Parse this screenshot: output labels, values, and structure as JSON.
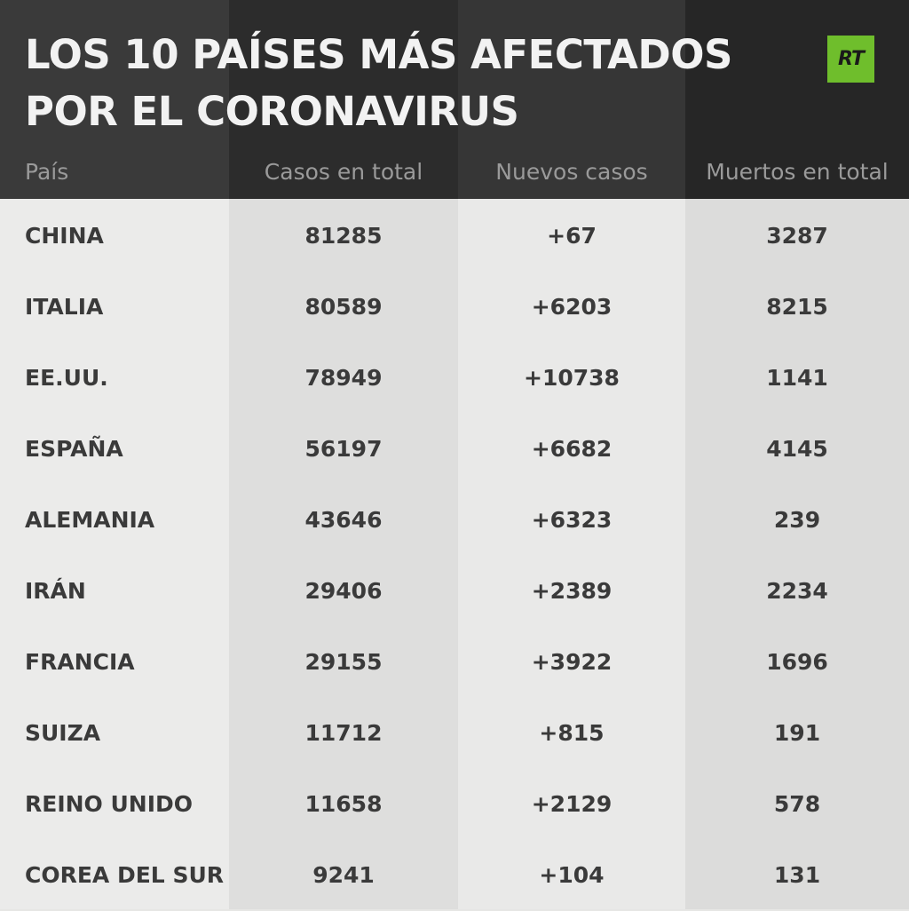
{
  "title_lines": [
    "LOS 10 PAÍSES MÁS AFECTADOS",
    "POR EL CORONAVIRUS"
  ],
  "logo_text": "RT",
  "colors": {
    "header_bg": "#2c2c2c",
    "logo_bg": "#6fbe2c",
    "text": "#3a3a3a",
    "header_label": "#9a9a9a"
  },
  "chart_data": {
    "type": "table",
    "title": "LOS 10 PAÍSES MÁS AFECTADOS POR EL CORONAVIRUS",
    "columns": [
      "País",
      "Casos en total",
      "Nuevos casos",
      "Muertos en total"
    ],
    "rows": [
      [
        "CHINA",
        "81285",
        "+67",
        "3287"
      ],
      [
        "ITALIA",
        "80589",
        "+6203",
        "8215"
      ],
      [
        "EE.UU.",
        "78949",
        "+10738",
        "1141"
      ],
      [
        "ESPAÑA",
        "56197",
        "+6682",
        "4145"
      ],
      [
        "ALEMANIA",
        "43646",
        "+6323",
        "239"
      ],
      [
        "IRÁN",
        "29406",
        "+2389",
        "2234"
      ],
      [
        "FRANCIA",
        "29155",
        "+3922",
        "1696"
      ],
      [
        "SUIZA",
        "11712",
        "+815",
        "191"
      ],
      [
        "REINO UNIDO",
        "11658",
        "+2129",
        "578"
      ],
      [
        "COREA DEL SUR",
        "9241",
        "+104",
        "131"
      ]
    ]
  }
}
